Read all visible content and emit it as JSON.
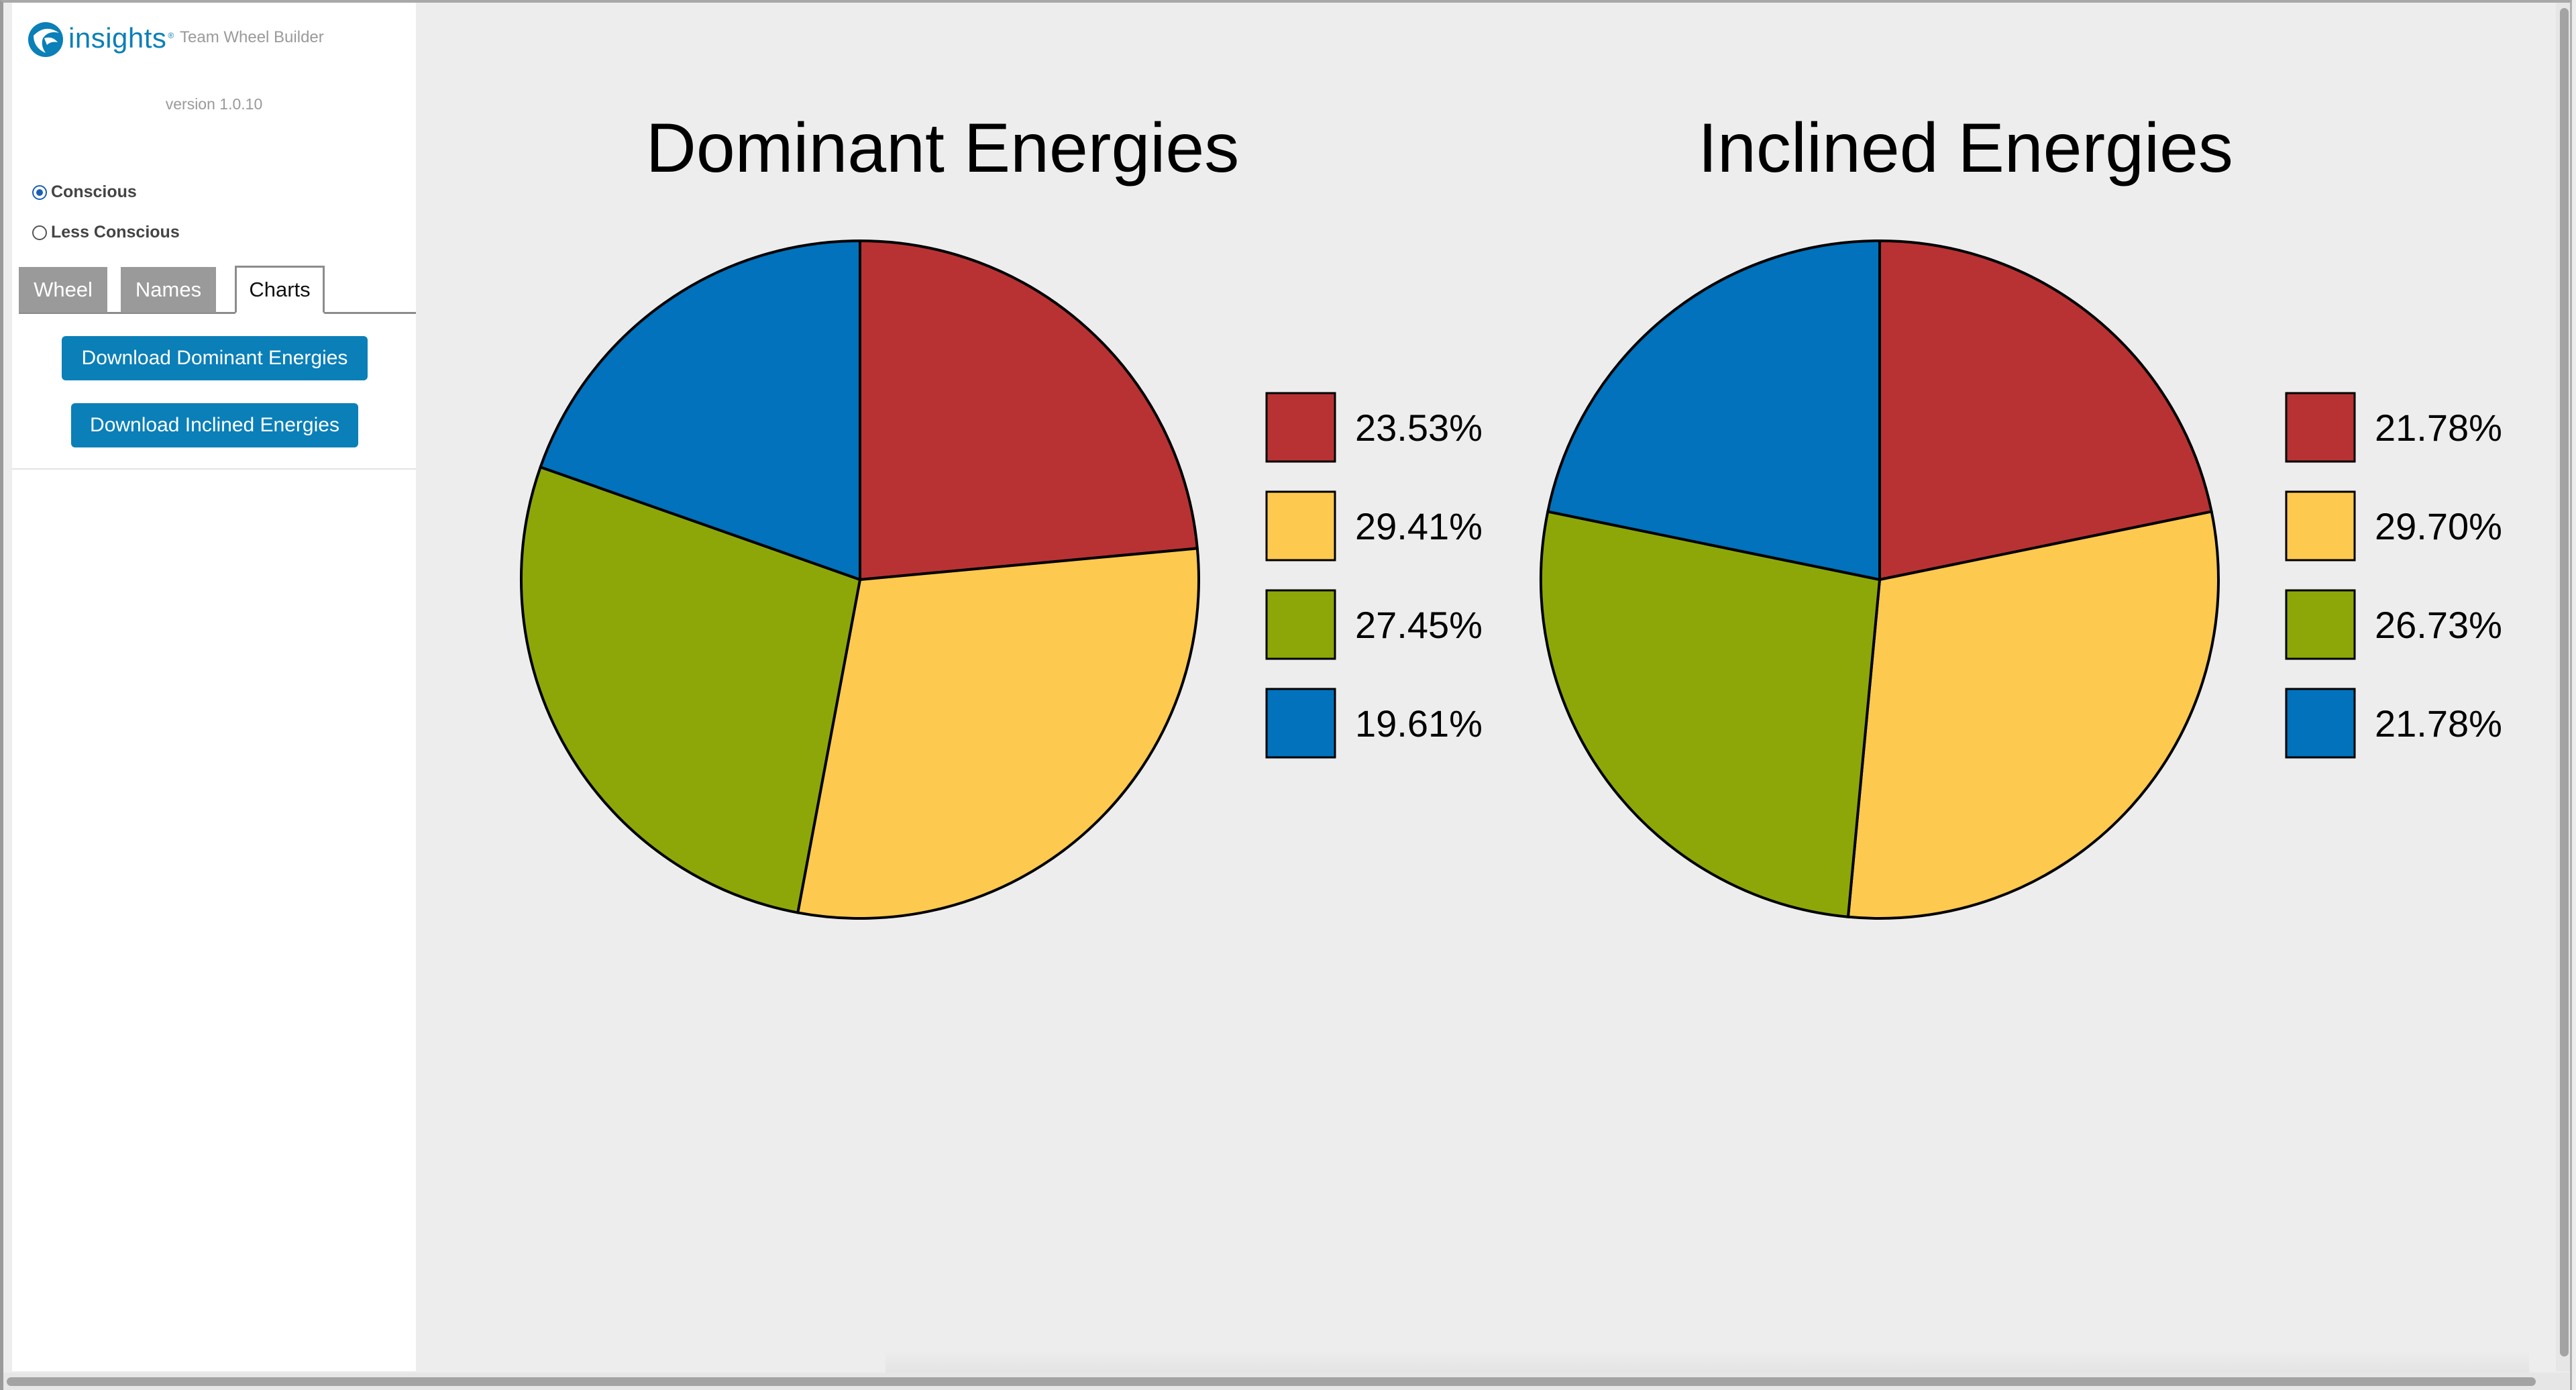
{
  "sidebar": {
    "logo_text": "insights",
    "logo_tm": "®",
    "app_name": "Team Wheel Builder",
    "version": "version 1.0.10",
    "radios": [
      {
        "label": "Conscious",
        "checked": true
      },
      {
        "label": "Less Conscious",
        "checked": false
      }
    ],
    "tabs": [
      {
        "label": "Wheel",
        "active": false
      },
      {
        "label": "Names",
        "active": false
      },
      {
        "label": "Charts",
        "active": true
      }
    ],
    "buttons": {
      "download_dominant": "Download Dominant Energies",
      "download_inclined": "Download Inclined Energies"
    }
  },
  "colors": {
    "red": "#b83234",
    "yellow": "#fdc94f",
    "green": "#8da709",
    "blue": "#0172bb",
    "button": "#0a7fb8"
  },
  "chart_data": [
    {
      "type": "pie",
      "title": "Dominant Energies",
      "categories": [
        "red",
        "yellow",
        "green",
        "blue"
      ],
      "values": [
        23.53,
        29.41,
        27.45,
        19.61
      ],
      "labels": [
        "23.53%",
        "29.41%",
        "27.45%",
        "19.61%"
      ],
      "legend": "right"
    },
    {
      "type": "pie",
      "title": "Inclined Energies",
      "categories": [
        "red",
        "yellow",
        "green",
        "blue"
      ],
      "values": [
        21.78,
        29.7,
        26.73,
        21.78
      ],
      "labels": [
        "21.78%",
        "29.70%",
        "26.73%",
        "21.78%"
      ],
      "legend": "right"
    }
  ]
}
